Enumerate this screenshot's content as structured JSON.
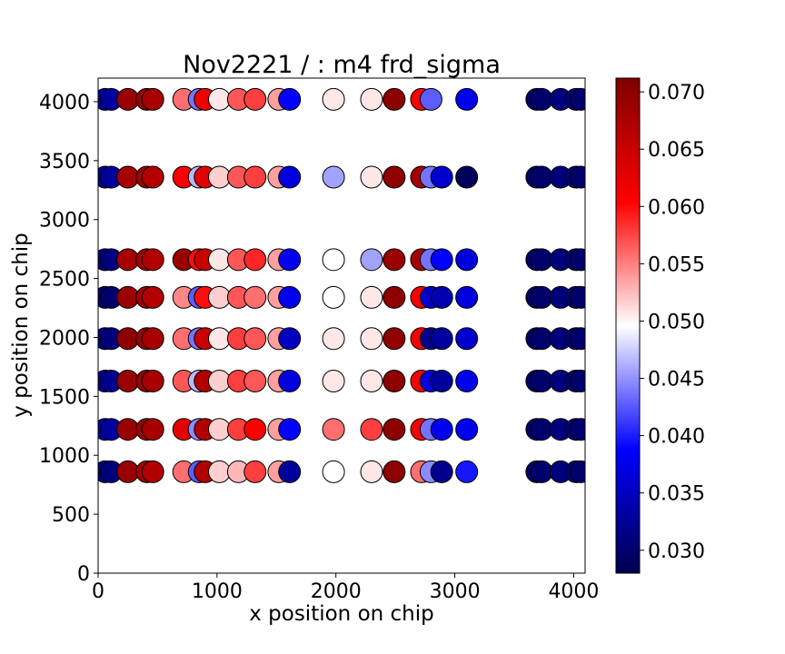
{
  "chart_data": {
    "type": "scatter",
    "title": "Nov2221 / : m4 frd_sigma",
    "xlabel": "x position on chip",
    "ylabel": "y position on chip",
    "xlim": [
      0,
      4096
    ],
    "ylim": [
      0,
      4200
    ],
    "xticks": [
      0,
      1000,
      2000,
      3000,
      4000
    ],
    "yticks": [
      0,
      500,
      1000,
      1500,
      2000,
      2500,
      3000,
      3500,
      4000
    ],
    "grid": false,
    "colorbar": {
      "min": 0.028,
      "max": 0.0712,
      "center": 0.05,
      "colormap": "seismic",
      "ticks": [
        "0.030",
        "0.035",
        "0.040",
        "0.045",
        "0.050",
        "0.055",
        "0.060",
        "0.065",
        "0.070"
      ],
      "tick_values": [
        0.03,
        0.035,
        0.04,
        0.045,
        0.05,
        0.055,
        0.06,
        0.065,
        0.07
      ]
    },
    "columns_x": [
      60,
      110,
      250,
      410,
      460,
      720,
      850,
      900,
      1020,
      1180,
      1320,
      1520,
      1610,
      1980,
      2300,
      2490,
      2720,
      2800,
      2890,
      3100,
      3690,
      3730,
      3890,
      4020,
      4060
    ],
    "rows": [
      {
        "y": 4020,
        "values": [
          0.034,
          0.033,
          0.069,
          0.069,
          0.068,
          0.056,
          0.044,
          0.062,
          0.051,
          0.057,
          0.058,
          0.054,
          0.039,
          0.051,
          0.051,
          0.07,
          0.061,
          0.043,
          null,
          0.038,
          0.03,
          0.03,
          0.031,
          0.031,
          0.03
        ]
      },
      {
        "y": 3360,
        "values": [
          0.033,
          0.033,
          0.068,
          0.068,
          0.067,
          0.061,
          0.047,
          0.063,
          0.052,
          0.057,
          0.058,
          0.054,
          0.037,
          0.046,
          0.051,
          0.07,
          0.068,
          0.044,
          0.036,
          0.029,
          0.03,
          0.03,
          0.031,
          0.031,
          0.03
        ]
      },
      {
        "y": 2660,
        "values": [
          0.032,
          0.031,
          0.068,
          0.068,
          0.067,
          0.069,
          0.06,
          0.065,
          0.051,
          0.057,
          0.059,
          0.054,
          0.038,
          0.05,
          0.046,
          0.069,
          0.068,
          0.044,
          0.039,
          0.037,
          0.03,
          0.03,
          0.031,
          0.031,
          0.03
        ]
      },
      {
        "y": 2340,
        "values": [
          0.031,
          0.03,
          0.069,
          0.068,
          0.067,
          0.055,
          0.043,
          0.06,
          0.052,
          0.057,
          0.056,
          0.054,
          0.038,
          0.05,
          0.051,
          0.07,
          0.061,
          0.036,
          0.034,
          0.037,
          0.03,
          0.03,
          0.031,
          0.031,
          0.03
        ]
      },
      {
        "y": 1990,
        "values": [
          0.032,
          0.031,
          0.07,
          0.069,
          0.068,
          0.056,
          0.044,
          0.065,
          0.051,
          0.058,
          0.057,
          0.054,
          0.035,
          0.051,
          0.051,
          0.07,
          0.061,
          0.032,
          0.033,
          0.036,
          0.03,
          0.03,
          0.031,
          0.031,
          0.03
        ]
      },
      {
        "y": 1630,
        "values": [
          0.033,
          0.032,
          0.069,
          0.069,
          0.068,
          0.057,
          0.047,
          0.067,
          0.052,
          0.058,
          0.057,
          0.054,
          0.037,
          0.051,
          0.051,
          0.07,
          0.061,
          0.037,
          0.033,
          0.038,
          0.03,
          0.03,
          0.031,
          0.031,
          0.03
        ]
      },
      {
        "y": 1220,
        "values": [
          0.034,
          0.033,
          0.069,
          0.069,
          0.068,
          0.063,
          0.045,
          0.067,
          0.052,
          0.058,
          0.061,
          0.054,
          0.039,
          0.056,
          0.058,
          0.07,
          0.061,
          0.044,
          0.038,
          0.038,
          0.03,
          0.03,
          0.031,
          0.031,
          0.03
        ]
      },
      {
        "y": 860,
        "values": [
          0.032,
          0.031,
          0.069,
          0.068,
          0.067,
          0.056,
          0.043,
          0.067,
          0.052,
          0.053,
          0.058,
          0.054,
          0.033,
          0.05,
          0.051,
          0.07,
          0.056,
          0.045,
          0.032,
          0.04,
          0.03,
          0.03,
          0.031,
          0.031,
          0.03
        ]
      }
    ]
  }
}
